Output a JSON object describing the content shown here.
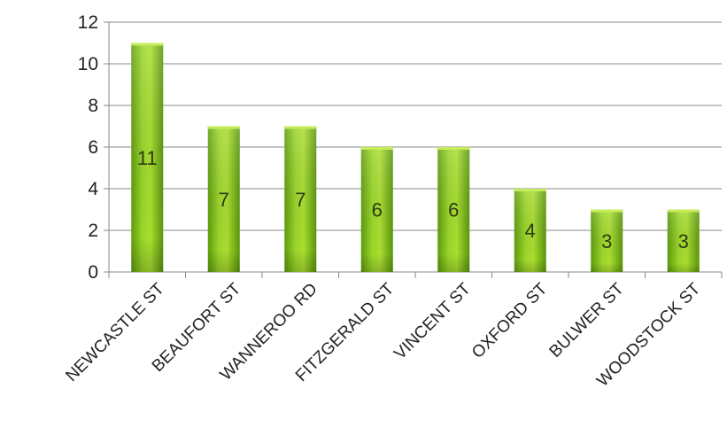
{
  "chart_data": {
    "type": "bar",
    "categories": [
      "NEWCASTLE ST",
      "BEAUFORT ST",
      "WANNEROO RD",
      "FITZGERALD ST",
      "VINCENT ST",
      "OXFORD ST",
      "BULWER ST",
      "WOODSTOCK ST"
    ],
    "values": [
      11,
      7,
      7,
      6,
      6,
      4,
      3,
      3
    ],
    "data_labels": [
      "11",
      "7",
      "7",
      "6",
      "6",
      "4",
      "3",
      "3"
    ],
    "y_ticks": [
      "0",
      "2",
      "4",
      "6",
      "8",
      "10",
      "12"
    ],
    "title": "",
    "xlabel": "",
    "ylabel": "",
    "ylim": [
      0,
      12
    ],
    "grid": true,
    "legend": "none",
    "colors": {
      "bar_top": "#b3e234",
      "bar_mid": "#7fc318",
      "bar_bottom": "#4f8c0a",
      "grid": "#8a8a8a",
      "axis": "#8a8a8a"
    }
  }
}
